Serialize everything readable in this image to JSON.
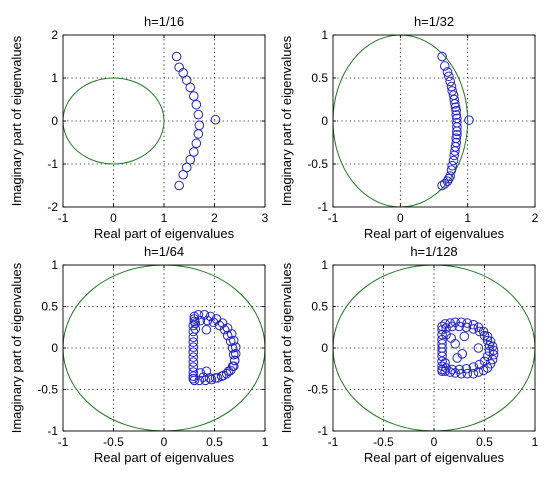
{
  "colors": {
    "unit_circle": "#1f7a1f",
    "eigenvalues": "#2323c8",
    "axes": "#000000",
    "background": "#ffffff"
  },
  "chart_data": [
    {
      "type": "scatter",
      "title": "h=1/16",
      "xlabel": "Real part of eigenvalues",
      "ylabel": "Imaginary part of eigenvalues",
      "xlim": [
        -1,
        3
      ],
      "ylim": [
        -2,
        2
      ],
      "xticks": [
        -1,
        0,
        1,
        2,
        3
      ],
      "yticks": [
        -2,
        -1,
        0,
        1,
        2
      ],
      "xtick_labels": [
        "-1",
        "0",
        "1",
        "2",
        "3"
      ],
      "ytick_labels": [
        "-2",
        "-1",
        "0",
        "1",
        "2"
      ],
      "grid": true,
      "unit_circle": true,
      "series": [
        {
          "marker": "circle",
          "x": [
            2.02,
            1.25,
            1.3,
            1.38,
            1.45,
            1.52,
            1.59,
            1.64,
            1.68,
            1.7,
            1.68,
            1.64,
            1.59,
            1.52,
            1.45,
            1.38,
            1.3
          ],
          "y": [
            0.03,
            1.5,
            1.25,
            1.12,
            0.95,
            0.78,
            0.58,
            0.38,
            0.15,
            -0.1,
            -0.3,
            -0.52,
            -0.72,
            -0.9,
            -1.08,
            -1.25,
            -1.5
          ]
        }
      ]
    },
    {
      "type": "scatter",
      "title": "h=1/32",
      "xlabel": "Real part of eigenvalues",
      "ylabel": "Imaginary part of eigenvalues",
      "xlim": [
        -1,
        2
      ],
      "ylim": [
        -1,
        1
      ],
      "xticks": [
        -1,
        0,
        1,
        2
      ],
      "yticks": [
        -1,
        -0.5,
        0,
        0.5,
        1
      ],
      "xtick_labels": [
        "-1",
        "0",
        "1",
        "2"
      ],
      "ytick_labels": [
        "-1",
        "-0.5",
        "0",
        "0.5",
        "1"
      ],
      "grid": true,
      "unit_circle": true,
      "series": [
        {
          "marker": "circle",
          "x": [
            1.02,
            0.62,
            0.66,
            0.7,
            0.72,
            0.74,
            0.76,
            0.77,
            0.79,
            0.8,
            0.81,
            0.82,
            0.83,
            0.83,
            0.84,
            0.84,
            0.84,
            0.84,
            0.84,
            0.83,
            0.83,
            0.82,
            0.81,
            0.8,
            0.79,
            0.77,
            0.76,
            0.74,
            0.72,
            0.7,
            0.66,
            0.62
          ],
          "y": [
            0.01,
            0.75,
            0.64,
            0.57,
            0.52,
            0.46,
            0.4,
            0.35,
            0.3,
            0.25,
            0.2,
            0.16,
            0.12,
            0.07,
            0.03,
            -0.02,
            -0.07,
            -0.12,
            -0.16,
            -0.2,
            -0.25,
            -0.3,
            -0.35,
            -0.4,
            -0.46,
            -0.52,
            -0.57,
            -0.64,
            -0.67,
            -0.7,
            -0.73,
            -0.75
          ]
        }
      ]
    },
    {
      "type": "scatter",
      "title": "h=1/64",
      "xlabel": "Real part of eigenvalues",
      "ylabel": "Imaginary part of eigenvalues",
      "xlim": [
        -1,
        1
      ],
      "ylim": [
        -1,
        1
      ],
      "xticks": [
        -1,
        -0.5,
        0,
        0.5,
        1
      ],
      "yticks": [
        -1,
        -0.5,
        0,
        0.5,
        1
      ],
      "xtick_labels": [
        "-1",
        "-0.5",
        "0",
        "0.5",
        "1"
      ],
      "ytick_labels": [
        "-1",
        "-0.5",
        "0",
        "0.5",
        "1"
      ],
      "grid": true,
      "unit_circle": true,
      "series": [
        {
          "marker": "circle",
          "x": [
            0.29,
            0.29,
            0.29,
            0.29,
            0.29,
            0.29,
            0.29,
            0.29,
            0.29,
            0.29,
            0.29,
            0.29,
            0.3,
            0.3,
            0.3,
            0.3,
            0.34,
            0.4,
            0.46,
            0.52,
            0.58,
            0.63,
            0.67,
            0.69,
            0.71,
            0.71,
            0.7,
            0.68,
            0.64,
            0.59,
            0.53,
            0.47,
            0.41,
            0.35,
            0.31,
            0.36,
            0.43,
            0.49,
            0.55,
            0.6,
            0.63,
            0.66,
            0.68,
            0.69,
            0.7,
            0.69,
            0.66,
            0.62,
            0.57,
            0.51,
            0.45,
            0.39,
            0.42,
            0.36,
            0.31,
            0.42
          ],
          "y": [
            0.27,
            0.2,
            0.13,
            0.07,
            0.01,
            -0.05,
            -0.11,
            -0.17,
            -0.23,
            -0.29,
            -0.34,
            -0.37,
            0.32,
            0.35,
            0.38,
            -0.39,
            0.4,
            0.4,
            0.38,
            0.35,
            0.3,
            0.24,
            0.17,
            0.09,
            0.01,
            -0.07,
            -0.15,
            -0.22,
            -0.28,
            -0.33,
            -0.36,
            -0.38,
            -0.39,
            -0.39,
            0.23,
            0.33,
            0.33,
            0.31,
            0.27,
            0.22,
            0.15,
            0.08,
            0.0,
            -0.08,
            -0.15,
            -0.22,
            -0.27,
            -0.31,
            -0.34,
            -0.36,
            -0.36,
            -0.35,
            0.22,
            -0.3,
            0.3,
            -0.28
          ]
        }
      ]
    },
    {
      "type": "scatter",
      "title": "h=1/128",
      "xlabel": "Real part of eigenvalues",
      "ylabel": "Imaginary part of eigenvalues",
      "xlim": [
        -1,
        1
      ],
      "ylim": [
        -1,
        1
      ],
      "xticks": [
        -1,
        -0.5,
        0,
        0.5,
        1
      ],
      "yticks": [
        -1,
        -0.5,
        0,
        0.5,
        1
      ],
      "xtick_labels": [
        "-1",
        "-0.5",
        "0",
        "0.5",
        "1"
      ],
      "ytick_labels": [
        "-1",
        "-0.5",
        "0",
        "0.5",
        "1"
      ],
      "grid": true,
      "unit_circle": true,
      "series": [
        {
          "marker": "circle",
          "x": [
            0.08,
            0.08,
            0.08,
            0.08,
            0.08,
            0.08,
            0.08,
            0.08,
            0.08,
            0.08,
            0.08,
            0.08,
            0.11,
            0.16,
            0.21,
            0.27,
            0.33,
            0.39,
            0.44,
            0.49,
            0.53,
            0.56,
            0.58,
            0.59,
            0.59,
            0.58,
            0.56,
            0.53,
            0.49,
            0.44,
            0.39,
            0.33,
            0.27,
            0.21,
            0.16,
            0.11,
            0.12,
            0.18,
            0.25,
            0.32,
            0.39,
            0.45,
            0.5,
            0.53,
            0.55,
            0.55,
            0.53,
            0.5,
            0.45,
            0.39,
            0.32,
            0.25,
            0.18,
            0.12,
            0.11,
            0.12,
            0.21,
            0.28,
            0.23,
            0.44,
            0.17,
            0.3
          ],
          "y": [
            0.22,
            0.16,
            0.1,
            0.05,
            0.0,
            -0.05,
            -0.1,
            -0.16,
            -0.22,
            -0.26,
            0.26,
            -0.28,
            0.29,
            0.3,
            0.31,
            0.31,
            0.3,
            0.28,
            0.25,
            0.2,
            0.14,
            0.08,
            0.02,
            -0.03,
            -0.08,
            -0.14,
            -0.19,
            -0.24,
            -0.27,
            -0.29,
            -0.31,
            -0.31,
            -0.31,
            -0.3,
            -0.29,
            -0.28,
            0.24,
            0.26,
            0.26,
            0.25,
            0.23,
            0.2,
            0.15,
            0.09,
            0.03,
            -0.04,
            -0.1,
            -0.16,
            -0.2,
            -0.23,
            -0.25,
            -0.26,
            -0.26,
            -0.24,
            -0.18,
            0.16,
            0.05,
            -0.07,
            -0.12,
            0.0,
            0.12,
            0.14
          ]
        }
      ]
    }
  ]
}
